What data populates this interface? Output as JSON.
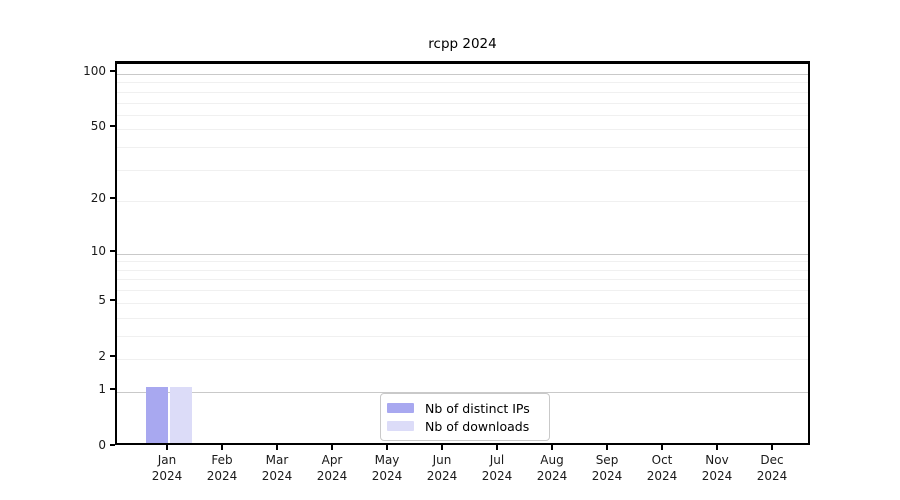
{
  "title": "rcpp 2024",
  "chart_data": {
    "type": "bar",
    "title": "rcpp 2024",
    "xlabel": "",
    "ylabel": "",
    "categories": [
      {
        "month": "Jan",
        "year": "2024"
      },
      {
        "month": "Feb",
        "year": "2024"
      },
      {
        "month": "Mar",
        "year": "2024"
      },
      {
        "month": "Apr",
        "year": "2024"
      },
      {
        "month": "May",
        "year": "2024"
      },
      {
        "month": "Jun",
        "year": "2024"
      },
      {
        "month": "Jul",
        "year": "2024"
      },
      {
        "month": "Aug",
        "year": "2024"
      },
      {
        "month": "Sep",
        "year": "2024"
      },
      {
        "month": "Oct",
        "year": "2024"
      },
      {
        "month": "Nov",
        "year": "2024"
      },
      {
        "month": "Dec",
        "year": "2024"
      }
    ],
    "series": [
      {
        "name": "Nb of distinct IPs",
        "color": "#a8a8f0",
        "values": [
          1,
          0,
          0,
          0,
          0,
          0,
          0,
          0,
          0,
          0,
          0,
          0
        ]
      },
      {
        "name": "Nb of downloads",
        "color": "#dcdcf8",
        "values": [
          1,
          0,
          0,
          0,
          0,
          0,
          0,
          0,
          0,
          0,
          0,
          0
        ]
      }
    ],
    "y_axis": {
      "scale": "log1p",
      "tick_labels": [
        0,
        1,
        2,
        5,
        10,
        20,
        50,
        100
      ],
      "major_gridlines": [
        1,
        10,
        100
      ],
      "minor_gridlines": [
        2,
        3,
        4,
        5,
        6,
        7,
        8,
        9,
        20,
        30,
        40,
        50,
        60,
        70,
        80,
        90
      ],
      "ylim": [
        0,
        115
      ]
    },
    "legend": {
      "position": "lower center inside",
      "entries": [
        "Nb of distinct IPs",
        "Nb of downloads"
      ]
    },
    "colors": {
      "major_grid": "#c9c9c9",
      "minor_grid": "#f0f0f0",
      "spine": "#000000",
      "background": "#ffffff"
    }
  }
}
